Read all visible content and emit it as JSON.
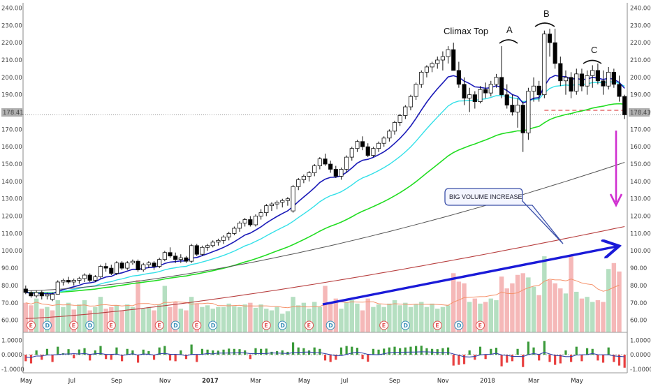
{
  "chart_data": {
    "type": "candlestick",
    "price_axis": {
      "ylim": [
        53,
        243
      ],
      "ticks": [
        "240.00",
        "230.00",
        "220.00",
        "210.00",
        "200.00",
        "190.00",
        "180.00",
        "170.00",
        "160.00",
        "150.00",
        "140.00",
        "130.00",
        "120.00",
        "110.00",
        "100.00",
        "90.00",
        "80.00",
        "70.00",
        "60.00"
      ]
    },
    "last_price_label": "178.41",
    "last_price": 178.41,
    "resistance_level": 181,
    "oscillator_axis": {
      "ylim": [
        -1.25,
        1.35
      ],
      "ticks": [
        "1.0000",
        "0.0000",
        "-1.0000"
      ]
    },
    "x_labels": [
      {
        "label": "May",
        "bar": 0,
        "bold": false
      },
      {
        "label": "Jul",
        "bar": 9,
        "bold": false
      },
      {
        "label": "Sep",
        "bar": 17,
        "bold": false
      },
      {
        "label": "Nov",
        "bar": 26,
        "bold": false
      },
      {
        "label": "2017",
        "bar": 34,
        "bold": true
      },
      {
        "label": "Mar",
        "bar": 43,
        "bold": false
      },
      {
        "label": "May",
        "bar": 52,
        "bold": false
      },
      {
        "label": "Jul",
        "bar": 60,
        "bold": false
      },
      {
        "label": "Sep",
        "bar": 69,
        "bold": false
      },
      {
        "label": "Nov",
        "bar": 78,
        "bold": false
      },
      {
        "label": "2018",
        "bar": 86,
        "bold": false
      },
      {
        "label": "Mar",
        "bar": 95,
        "bold": false
      },
      {
        "label": "May",
        "bar": 103,
        "bold": false
      }
    ],
    "ohlc": [
      [
        78,
        80,
        75,
        76
      ],
      [
        76,
        77,
        73,
        74
      ],
      [
        74,
        77,
        73,
        76
      ],
      [
        76,
        77,
        72,
        74
      ],
      [
        74,
        76,
        72,
        75
      ],
      [
        72,
        76,
        71,
        75
      ],
      [
        75,
        83,
        75,
        82
      ],
      [
        82,
        84,
        80,
        83
      ],
      [
        83,
        85,
        81,
        82
      ],
      [
        82,
        84,
        80,
        83
      ],
      [
        83,
        85,
        81,
        84
      ],
      [
        84,
        87,
        82,
        86
      ],
      [
        86,
        87,
        82,
        83
      ],
      [
        83,
        86,
        82,
        85
      ],
      [
        85,
        92,
        84,
        91
      ],
      [
        91,
        93,
        88,
        90
      ],
      [
        90,
        92,
        86,
        87
      ],
      [
        87,
        94,
        86,
        93
      ],
      [
        93,
        94,
        89,
        90
      ],
      [
        90,
        94,
        89,
        93
      ],
      [
        93,
        95,
        92,
        94
      ],
      [
        94,
        95,
        88,
        89
      ],
      [
        89,
        93,
        88,
        92
      ],
      [
        92,
        94,
        90,
        93
      ],
      [
        93,
        94,
        89,
        91
      ],
      [
        91,
        96,
        90,
        95
      ],
      [
        95,
        100,
        94,
        99
      ],
      [
        99,
        102,
        96,
        97
      ],
      [
        97,
        99,
        93,
        95
      ],
      [
        95,
        98,
        93,
        96
      ],
      [
        96,
        97,
        93,
        94
      ],
      [
        94,
        104,
        93,
        103
      ],
      [
        103,
        104,
        97,
        98
      ],
      [
        98,
        103,
        97,
        102
      ],
      [
        102,
        104,
        100,
        103
      ],
      [
        103,
        106,
        102,
        105
      ],
      [
        105,
        107,
        103,
        106
      ],
      [
        106,
        109,
        104,
        108
      ],
      [
        108,
        111,
        106,
        110
      ],
      [
        110,
        114,
        109,
        113
      ],
      [
        113,
        117,
        111,
        116
      ],
      [
        116,
        119,
        114,
        118
      ],
      [
        118,
        120,
        114,
        115
      ],
      [
        115,
        121,
        114,
        120
      ],
      [
        120,
        124,
        118,
        122
      ],
      [
        122,
        127,
        120,
        126
      ],
      [
        126,
        128,
        123,
        127
      ],
      [
        127,
        129,
        124,
        128
      ],
      [
        128,
        130,
        125,
        129
      ],
      [
        129,
        131,
        126,
        130
      ],
      [
        123,
        138,
        122,
        137
      ],
      [
        137,
        142,
        135,
        141
      ],
      [
        141,
        144,
        139,
        143
      ],
      [
        143,
        146,
        140,
        145
      ],
      [
        145,
        150,
        143,
        149
      ],
      [
        149,
        154,
        147,
        153
      ],
      [
        153,
        156,
        149,
        150
      ],
      [
        150,
        152,
        145,
        147
      ],
      [
        147,
        149,
        142,
        143
      ],
      [
        143,
        148,
        141,
        147
      ],
      [
        147,
        155,
        145,
        154
      ],
      [
        154,
        160,
        152,
        159
      ],
      [
        159,
        164,
        157,
        163
      ],
      [
        163,
        166,
        158,
        160
      ],
      [
        160,
        162,
        154,
        155
      ],
      [
        155,
        160,
        154,
        159
      ],
      [
        159,
        163,
        157,
        162
      ],
      [
        162,
        166,
        160,
        165
      ],
      [
        165,
        170,
        163,
        169
      ],
      [
        169,
        175,
        167,
        174
      ],
      [
        174,
        179,
        172,
        178
      ],
      [
        178,
        184,
        176,
        183
      ],
      [
        183,
        190,
        181,
        189
      ],
      [
        189,
        197,
        187,
        196
      ],
      [
        196,
        204,
        194,
        203
      ],
      [
        203,
        207,
        200,
        206
      ],
      [
        206,
        209,
        203,
        208
      ],
      [
        208,
        212,
        205,
        210
      ],
      [
        210,
        215,
        204,
        212
      ],
      [
        212,
        218,
        208,
        216
      ],
      [
        216,
        220,
        205,
        204
      ],
      [
        204,
        209,
        194,
        196
      ],
      [
        196,
        200,
        184,
        188
      ],
      [
        188,
        194,
        180,
        190
      ],
      [
        190,
        192,
        182,
        186
      ],
      [
        186,
        195,
        185,
        193
      ],
      [
        193,
        197,
        188,
        191
      ],
      [
        191,
        198,
        189,
        196
      ],
      [
        196,
        202,
        194,
        200
      ],
      [
        200,
        218,
        188,
        190
      ],
      [
        190,
        196,
        182,
        184
      ],
      [
        184,
        190,
        178,
        180
      ],
      [
        180,
        188,
        171,
        184
      ],
      [
        184,
        186,
        157,
        168
      ],
      [
        168,
        194,
        164,
        192
      ],
      [
        192,
        200,
        186,
        195
      ],
      [
        195,
        198,
        186,
        190
      ],
      [
        190,
        227,
        188,
        225
      ],
      [
        225,
        228,
        212,
        220
      ],
      [
        220,
        228,
        205,
        208
      ],
      [
        208,
        212,
        195,
        198
      ],
      [
        198,
        204,
        190,
        200
      ],
      [
        200,
        203,
        188,
        192
      ],
      [
        192,
        205,
        190,
        202
      ],
      [
        202,
        205,
        192,
        195
      ],
      [
        195,
        204,
        190,
        201
      ],
      [
        201,
        207,
        194,
        204
      ],
      [
        204,
        208,
        196,
        198
      ],
      [
        198,
        204,
        190,
        195
      ],
      [
        195,
        206,
        193,
        203
      ],
      [
        203,
        205,
        194,
        196
      ],
      [
        196,
        201,
        186,
        189
      ],
      [
        189,
        190,
        176,
        178.41
      ]
    ],
    "volume": [
      [
        0.35,
        "r"
      ],
      [
        0.32,
        "r"
      ],
      [
        0.4,
        "g"
      ],
      [
        0.28,
        "r"
      ],
      [
        0.3,
        "g"
      ],
      [
        0.26,
        "r"
      ],
      [
        0.38,
        "g"
      ],
      [
        0.3,
        "g"
      ],
      [
        0.35,
        "g"
      ],
      [
        0.27,
        "r"
      ],
      [
        0.33,
        "g"
      ],
      [
        0.38,
        "g"
      ],
      [
        0.26,
        "r"
      ],
      [
        0.3,
        "g"
      ],
      [
        0.42,
        "g"
      ],
      [
        0.28,
        "r"
      ],
      [
        0.3,
        "r"
      ],
      [
        0.32,
        "g"
      ],
      [
        0.26,
        "r"
      ],
      [
        0.33,
        "g"
      ],
      [
        0.3,
        "g"
      ],
      [
        0.62,
        "r"
      ],
      [
        0.28,
        "g"
      ],
      [
        0.3,
        "g"
      ],
      [
        0.26,
        "r"
      ],
      [
        0.33,
        "g"
      ],
      [
        0.55,
        "g"
      ],
      [
        0.3,
        "r"
      ],
      [
        0.36,
        "r"
      ],
      [
        0.28,
        "g"
      ],
      [
        0.26,
        "r"
      ],
      [
        0.42,
        "g"
      ],
      [
        0.34,
        "r"
      ],
      [
        0.3,
        "g"
      ],
      [
        0.32,
        "g"
      ],
      [
        0.28,
        "g"
      ],
      [
        0.3,
        "g"
      ],
      [
        0.3,
        "g"
      ],
      [
        0.34,
        "g"
      ],
      [
        0.31,
        "g"
      ],
      [
        0.3,
        "g"
      ],
      [
        0.33,
        "g"
      ],
      [
        0.35,
        "r"
      ],
      [
        0.29,
        "g"
      ],
      [
        0.33,
        "g"
      ],
      [
        0.28,
        "g"
      ],
      [
        0.26,
        "g"
      ],
      [
        0.3,
        "g"
      ],
      [
        0.22,
        "g"
      ],
      [
        0.25,
        "g"
      ],
      [
        0.42,
        "g"
      ],
      [
        0.32,
        "g"
      ],
      [
        0.35,
        "g"
      ],
      [
        0.28,
        "g"
      ],
      [
        0.36,
        "g"
      ],
      [
        0.3,
        "g"
      ],
      [
        0.55,
        "r"
      ],
      [
        0.34,
        "r"
      ],
      [
        0.4,
        "r"
      ],
      [
        0.28,
        "g"
      ],
      [
        0.36,
        "g"
      ],
      [
        0.38,
        "g"
      ],
      [
        0.34,
        "g"
      ],
      [
        0.26,
        "r"
      ],
      [
        0.4,
        "r"
      ],
      [
        0.3,
        "g"
      ],
      [
        0.33,
        "g"
      ],
      [
        0.3,
        "g"
      ],
      [
        0.34,
        "g"
      ],
      [
        0.38,
        "g"
      ],
      [
        0.32,
        "g"
      ],
      [
        0.35,
        "g"
      ],
      [
        0.3,
        "g"
      ],
      [
        0.33,
        "g"
      ],
      [
        0.36,
        "g"
      ],
      [
        0.3,
        "g"
      ],
      [
        0.34,
        "g"
      ],
      [
        0.28,
        "g"
      ],
      [
        0.3,
        "g"
      ],
      [
        0.32,
        "g"
      ],
      [
        0.7,
        "r"
      ],
      [
        0.6,
        "r"
      ],
      [
        0.58,
        "r"
      ],
      [
        0.36,
        "g"
      ],
      [
        0.4,
        "r"
      ],
      [
        0.34,
        "g"
      ],
      [
        0.36,
        "r"
      ],
      [
        0.4,
        "g"
      ],
      [
        0.38,
        "g"
      ],
      [
        0.66,
        "r"
      ],
      [
        0.52,
        "r"
      ],
      [
        0.58,
        "r"
      ],
      [
        0.68,
        "r"
      ],
      [
        0.7,
        "r"
      ],
      [
        0.65,
        "g"
      ],
      [
        0.54,
        "g"
      ],
      [
        0.44,
        "r"
      ],
      [
        0.9,
        "g"
      ],
      [
        0.62,
        "r"
      ],
      [
        0.58,
        "r"
      ],
      [
        0.52,
        "r"
      ],
      [
        0.46,
        "g"
      ],
      [
        0.9,
        "r"
      ],
      [
        0.48,
        "g"
      ],
      [
        0.4,
        "r"
      ],
      [
        0.42,
        "g"
      ],
      [
        0.36,
        "g"
      ],
      [
        0.38,
        "r"
      ],
      [
        0.36,
        "r"
      ],
      [
        0.75,
        "g"
      ],
      [
        0.82,
        "r"
      ],
      [
        0.72,
        "r"
      ]
    ],
    "oscillator": [
      -0.45,
      -0.6,
      0.3,
      -0.35,
      0.4,
      -0.5,
      0.55,
      0.1,
      0.38,
      -0.25,
      0.36,
      0.45,
      -0.4,
      0.3,
      0.6,
      -0.3,
      -0.35,
      0.5,
      -0.45,
      0.4,
      0.3,
      -0.55,
      0.35,
      0.25,
      -0.35,
      0.5,
      0.6,
      -0.4,
      -0.45,
      0.3,
      -0.3,
      0.7,
      -0.5,
      0.4,
      0.35,
      0.3,
      0.28,
      0.35,
      0.42,
      0.4,
      0.38,
      0.3,
      -0.3,
      0.45,
      0.4,
      0.42,
      0.2,
      0.25,
      0.3,
      0.2,
      0.85,
      0.5,
      0.45,
      0.3,
      0.5,
      0.4,
      -0.4,
      -0.5,
      -0.35,
      0.5,
      0.6,
      0.55,
      0.48,
      -0.3,
      -0.48,
      0.4,
      0.35,
      0.42,
      0.5,
      0.55,
      0.45,
      0.5,
      0.55,
      0.6,
      0.62,
      0.45,
      0.4,
      0.38,
      0.45,
      0.5,
      -0.75,
      -0.7,
      -0.65,
      0.3,
      -0.35,
      0.55,
      -0.3,
      0.4,
      0.48,
      -0.8,
      -0.55,
      -0.45,
      0.4,
      -0.85,
      0.9,
      0.5,
      -0.4,
      0.95,
      -0.5,
      -0.7,
      -0.6,
      0.3,
      -0.5,
      0.55,
      -0.45,
      0.45,
      0.4,
      -0.4,
      -0.55,
      0.5,
      -0.5,
      -0.75,
      -0.9
    ],
    "earnings_dividend_markers": [
      {
        "label": "E",
        "bar": 1
      },
      {
        "label": "D",
        "bar": 4
      },
      {
        "label": "E",
        "bar": 9
      },
      {
        "label": "D",
        "bar": 12
      },
      {
        "label": "E",
        "bar": 16
      },
      {
        "label": "E",
        "bar": 25
      },
      {
        "label": "D",
        "bar": 28
      },
      {
        "label": "E",
        "bar": 32
      },
      {
        "label": "D",
        "bar": 35
      },
      {
        "label": "E",
        "bar": 45
      },
      {
        "label": "D",
        "bar": 48
      },
      {
        "label": "E",
        "bar": 53
      },
      {
        "label": "D",
        "bar": 57
      },
      {
        "label": "E",
        "bar": 67
      },
      {
        "label": "D",
        "bar": 71
      },
      {
        "label": "E",
        "bar": 77
      },
      {
        "label": "D",
        "bar": 81
      },
      {
        "label": "E",
        "bar": 85
      }
    ],
    "annotations": [
      {
        "text": "Climax Top"
      },
      {
        "text": "A"
      },
      {
        "text": "B"
      },
      {
        "text": "C"
      }
    ],
    "callout_text": "BIG VOLUME INCREASE",
    "colors": {
      "up_candle": "#ffffff",
      "down_candle": "#000000",
      "ma_blue": "#1a1ab8",
      "ma_cyan": "#33e0e8",
      "ma_green": "#22dd22",
      "ma_gray": "#555555",
      "ma_red": "#b84040",
      "vol_green": "#b5dfc1",
      "vol_red": "#f5b8b8",
      "vol_avg": "#f5916a",
      "osc_green": "#3a9a3a",
      "osc_red": "#e84040",
      "osc_line": "#3344aa",
      "trend_arrow": "#1a1ad8",
      "drop_arrow": "#d030d0",
      "last_price_bg": "#b0b0b0"
    }
  }
}
